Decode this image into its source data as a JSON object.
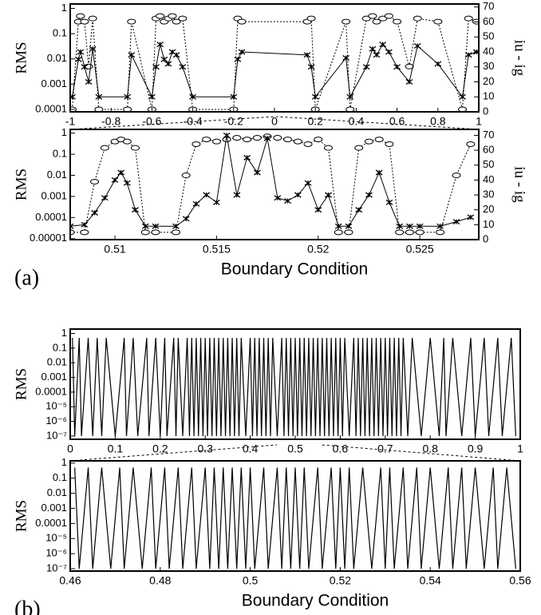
{
  "chart_data": [
    {
      "type": "line",
      "y_label": "RMS",
      "y2_label": "iu - ig",
      "log_y": true,
      "xlim": [
        -1,
        1
      ],
      "xticks": [
        -1,
        -0.8,
        -0.6,
        -0.4,
        -0.2,
        0,
        0.2,
        0.4,
        0.6,
        0.8,
        1
      ],
      "ylim": [
        8e-05,
        1.5
      ],
      "yticks": [
        1,
        0.1,
        0.01,
        0.001,
        0.0001
      ],
      "y2lim": [
        0,
        72
      ],
      "y2ticks": [
        0,
        10,
        20,
        30,
        40,
        50,
        60,
        70
      ],
      "x": [
        -0.99,
        -0.96,
        -0.95,
        -0.93,
        -0.91,
        -0.89,
        -0.86,
        -0.72,
        -0.7,
        -0.6,
        -0.58,
        -0.56,
        -0.54,
        -0.52,
        -0.5,
        -0.48,
        -0.45,
        -0.4,
        -0.2,
        -0.18,
        -0.16,
        0.16,
        0.18,
        0.2,
        0.35,
        0.37,
        0.45,
        0.48,
        0.5,
        0.53,
        0.56,
        0.6,
        0.66,
        0.7,
        0.8,
        0.92,
        0.95,
        0.99
      ],
      "series": [
        {
          "color": "#000000",
          "marker": "circle",
          "dash": true,
          "values": [
            0.0001,
            0.3,
            0.5,
            0.3,
            0.005,
            0.4,
            0.0001,
            0.0001,
            0.3,
            0.0001,
            0.4,
            0.5,
            0.3,
            0.4,
            0.5,
            0.3,
            0.4,
            0.0001,
            0.0001,
            0.4,
            0.3,
            0.3,
            0.4,
            0.0001,
            0.3,
            0.0001,
            0.4,
            0.5,
            0.3,
            0.4,
            0.5,
            0.3,
            0.005,
            0.4,
            0.3,
            0.0001,
            0.4,
            0.3
          ]
        },
        {
          "color": "#000000",
          "marker": "x",
          "dash": false,
          "axis": "y2",
          "values": [
            10,
            35,
            40,
            30,
            20,
            42,
            10,
            10,
            38,
            10,
            30,
            45,
            35,
            32,
            40,
            38,
            30,
            10,
            10,
            35,
            40,
            38,
            30,
            10,
            36,
            10,
            30,
            42,
            38,
            45,
            40,
            30,
            20,
            44,
            32,
            10,
            38,
            40
          ]
        }
      ]
    },
    {
      "type": "line",
      "y_label": "RMS",
      "y2_label": "iu - ig",
      "x_label": "Boundary Condition",
      "panel_label": "(a)",
      "log_y": true,
      "xlim": [
        0.5078,
        0.5279
      ],
      "xticks": [
        0.51,
        0.515,
        0.52,
        0.525
      ],
      "ylim": [
        9e-06,
        1.5
      ],
      "yticks": [
        1,
        0.1,
        0.01,
        0.001,
        0.0001,
        1e-05
      ],
      "y2lim": [
        0,
        74
      ],
      "y2ticks": [
        0,
        10,
        20,
        30,
        40,
        50,
        60,
        70
      ],
      "x": [
        0.5078,
        0.5085,
        0.509,
        0.5095,
        0.51,
        0.5103,
        0.5106,
        0.511,
        0.5115,
        0.512,
        0.513,
        0.5135,
        0.514,
        0.5145,
        0.515,
        0.5155,
        0.516,
        0.5165,
        0.517,
        0.5175,
        0.518,
        0.5185,
        0.519,
        0.5195,
        0.52,
        0.5205,
        0.521,
        0.5215,
        0.522,
        0.5225,
        0.523,
        0.5235,
        0.524,
        0.5245,
        0.525,
        0.526,
        0.5268,
        0.5275
      ],
      "series": [
        {
          "color": "#000000",
          "marker": "circle",
          "dash": true,
          "values": [
            2e-05,
            2e-05,
            0.005,
            0.2,
            0.4,
            0.5,
            0.4,
            0.2,
            2e-05,
            2e-05,
            2e-05,
            0.01,
            0.3,
            0.5,
            0.4,
            0.5,
            0.6,
            0.5,
            0.6,
            0.7,
            0.6,
            0.5,
            0.4,
            0.3,
            0.5,
            0.2,
            2e-05,
            2e-05,
            0.2,
            0.4,
            0.5,
            0.3,
            2e-05,
            2e-05,
            2e-05,
            2e-05,
            0.01,
            0.3
          ]
        },
        {
          "color": "#000000",
          "marker": "x",
          "dash": false,
          "axis": "y2",
          "values": [
            9,
            10,
            18,
            28,
            40,
            45,
            38,
            20,
            9,
            9,
            9,
            14,
            24,
            30,
            25,
            70,
            30,
            55,
            45,
            68,
            28,
            26,
            30,
            38,
            20,
            30,
            9,
            9,
            20,
            30,
            45,
            25,
            9,
            9,
            9,
            9,
            12,
            15
          ]
        }
      ]
    },
    {
      "type": "line",
      "y_label": "RMS",
      "log_y": true,
      "xlim": [
        0,
        1
      ],
      "xticks": [
        0,
        0.1,
        0.2,
        0.3,
        0.4,
        0.5,
        0.6,
        0.7,
        0.8,
        0.9,
        1
      ],
      "ylim": [
        6e-08,
        2
      ],
      "yticks": [
        1,
        0.1,
        0.01,
        0.001,
        0.0001,
        {
          "value": 1e-05,
          "label": "10⁻⁵"
        },
        {
          "value": 1e-06,
          "label": "10⁻⁶"
        },
        {
          "value": 1e-07,
          "label": "10⁻⁷"
        }
      ],
      "x": [
        0.005,
        0.01,
        0.02,
        0.025,
        0.04,
        0.05,
        0.06,
        0.07,
        0.08,
        0.1,
        0.12,
        0.125,
        0.14,
        0.15,
        0.17,
        0.175,
        0.19,
        0.2,
        0.21,
        0.215,
        0.23,
        0.235,
        0.24,
        0.25,
        0.26,
        0.265,
        0.27,
        0.275,
        0.28,
        0.285,
        0.29,
        0.295,
        0.3,
        0.305,
        0.31,
        0.315,
        0.32,
        0.325,
        0.33,
        0.335,
        0.34,
        0.345,
        0.35,
        0.355,
        0.36,
        0.365,
        0.37,
        0.375,
        0.38,
        0.39,
        0.4,
        0.405,
        0.41,
        0.415,
        0.42,
        0.425,
        0.43,
        0.435,
        0.44,
        0.445,
        0.45,
        0.46,
        0.47,
        0.475,
        0.48,
        0.485,
        0.49,
        0.495,
        0.5,
        0.505,
        0.51,
        0.515,
        0.52,
        0.525,
        0.53,
        0.535,
        0.54,
        0.545,
        0.55,
        0.555,
        0.56,
        0.565,
        0.57,
        0.575,
        0.58,
        0.585,
        0.59,
        0.595,
        0.6,
        0.605,
        0.61,
        0.62,
        0.63,
        0.635,
        0.64,
        0.645,
        0.65,
        0.655,
        0.66,
        0.665,
        0.67,
        0.675,
        0.68,
        0.685,
        0.69,
        0.695,
        0.7,
        0.705,
        0.71,
        0.715,
        0.72,
        0.725,
        0.73,
        0.735,
        0.74,
        0.75,
        0.76,
        0.78,
        0.8,
        0.82,
        0.83,
        0.835,
        0.85,
        0.87,
        0.89,
        0.9,
        0.92,
        0.93,
        0.95,
        0.96,
        0.98,
        0.99
      ],
      "series": [
        {
          "color": "#000000",
          "dash": false,
          "values": [
            0.5,
            1e-07,
            0.5,
            1e-07,
            0.5,
            1e-07,
            0.5,
            1e-07,
            0.5,
            1e-07,
            0.5,
            1e-07,
            0.5,
            1e-07,
            0.5,
            1e-07,
            0.5,
            1e-07,
            0.5,
            1e-07,
            0.5,
            1e-07,
            0.5,
            1e-07,
            0.5,
            1e-07,
            0.5,
            1e-07,
            0.5,
            1e-07,
            0.5,
            1e-07,
            0.5,
            1e-07,
            0.5,
            1e-07,
            0.5,
            1e-07,
            0.5,
            1e-07,
            0.5,
            1e-07,
            0.5,
            1e-07,
            0.5,
            1e-07,
            0.5,
            1e-07,
            0.5,
            1e-07,
            0.5,
            1e-07,
            0.5,
            1e-07,
            0.5,
            1e-07,
            0.5,
            1e-07,
            0.5,
            1e-07,
            0.5,
            1e-07,
            0.5,
            1e-07,
            0.5,
            1e-07,
            0.5,
            1e-07,
            0.5,
            1e-07,
            0.5,
            1e-07,
            0.5,
            1e-07,
            0.5,
            1e-07,
            0.5,
            1e-07,
            0.5,
            1e-07,
            0.5,
            1e-07,
            0.5,
            1e-07,
            0.5,
            1e-07,
            0.5,
            1e-07,
            0.5,
            1e-07,
            0.5,
            1e-07,
            0.5,
            1e-07,
            0.5,
            1e-07,
            0.5,
            1e-07,
            0.5,
            1e-07,
            0.5,
            1e-07,
            0.5,
            1e-07,
            0.5,
            1e-07,
            0.5,
            1e-07,
            0.5,
            1e-07,
            0.5,
            1e-07,
            0.5,
            1e-07,
            0.5,
            1e-07,
            0.5,
            1e-07,
            0.5,
            1e-07,
            0.5,
            1e-07,
            0.5,
            1e-07,
            0.5,
            1e-07,
            0.5,
            1e-07,
            0.5,
            1e-07,
            0.5,
            1e-07
          ]
        }
      ]
    },
    {
      "type": "line",
      "y_label": "RMS",
      "x_label": "Boundary Condition",
      "panel_label": "(b)",
      "log_y": true,
      "xlim": [
        0.46,
        0.56
      ],
      "xticks": [
        0.46,
        0.48,
        0.5,
        0.52,
        0.54,
        0.56
      ],
      "ylim": [
        7e-08,
        1.4
      ],
      "yticks": [
        1,
        0.1,
        0.01,
        0.001,
        0.0001,
        {
          "value": 1e-05,
          "label": "10⁻⁵"
        },
        {
          "value": 1e-06,
          "label": "10⁻⁶"
        },
        {
          "value": 1e-07,
          "label": "10⁻⁷"
        }
      ],
      "x": [
        0.461,
        0.462,
        0.464,
        0.465,
        0.467,
        0.469,
        0.471,
        0.472,
        0.474,
        0.476,
        0.478,
        0.479,
        0.481,
        0.482,
        0.484,
        0.485,
        0.487,
        0.488,
        0.49,
        0.491,
        0.492,
        0.493,
        0.494,
        0.495,
        0.496,
        0.497,
        0.498,
        0.499,
        0.5,
        0.501,
        0.503,
        0.504,
        0.506,
        0.507,
        0.508,
        0.509,
        0.51,
        0.511,
        0.512,
        0.513,
        0.515,
        0.516,
        0.518,
        0.519,
        0.52,
        0.521,
        0.522,
        0.523,
        0.525,
        0.527,
        0.529,
        0.53,
        0.531,
        0.532,
        0.534,
        0.535,
        0.537,
        0.538,
        0.54,
        0.542,
        0.544,
        0.545,
        0.547,
        0.548,
        0.55,
        0.552,
        0.554,
        0.555,
        0.557,
        0.559
      ],
      "series": [
        {
          "color": "#000000",
          "dash": false,
          "values": [
            0.5,
            1e-07,
            0.5,
            1e-07,
            0.5,
            1e-07,
            0.5,
            1e-07,
            0.5,
            1e-07,
            0.5,
            1e-07,
            0.5,
            1e-07,
            0.5,
            1e-07,
            0.5,
            1e-07,
            0.5,
            1e-07,
            0.5,
            1e-07,
            0.5,
            1e-07,
            0.5,
            1e-07,
            0.5,
            1e-07,
            0.5,
            1e-07,
            0.5,
            1e-07,
            0.5,
            1e-07,
            0.5,
            1e-07,
            0.5,
            1e-07,
            0.5,
            1e-07,
            0.5,
            1e-07,
            0.5,
            1e-07,
            0.5,
            1e-07,
            0.5,
            1e-07,
            0.5,
            1e-07,
            0.5,
            1e-07,
            0.5,
            1e-07,
            0.5,
            1e-07,
            0.5,
            1e-07,
            0.5,
            1e-07,
            0.5,
            1e-07,
            0.5,
            1e-07,
            0.5,
            1e-07,
            0.5,
            1e-07,
            0.5,
            1e-07
          ]
        }
      ]
    }
  ]
}
